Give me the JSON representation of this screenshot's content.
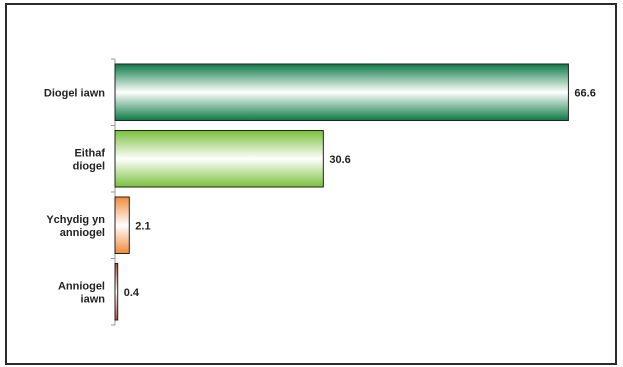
{
  "chart_data": {
    "type": "bar",
    "orientation": "horizontal",
    "categories": [
      [
        "Diogel iawn"
      ],
      [
        "Eithaf",
        "diogel"
      ],
      [
        "Ychydig yn",
        "anniogel"
      ],
      [
        "Anniogel",
        "iawn"
      ]
    ],
    "values": [
      66.6,
      30.6,
      2.1,
      0.4
    ],
    "value_labels": [
      "66.6",
      "30.6",
      "2.1",
      "0.4"
    ],
    "colors": [
      "#0b7a45",
      "#79c03a",
      "#f08a3a",
      "#b24a3a"
    ],
    "xlim": [
      0,
      73
    ],
    "grid": false,
    "legend": "none"
  }
}
